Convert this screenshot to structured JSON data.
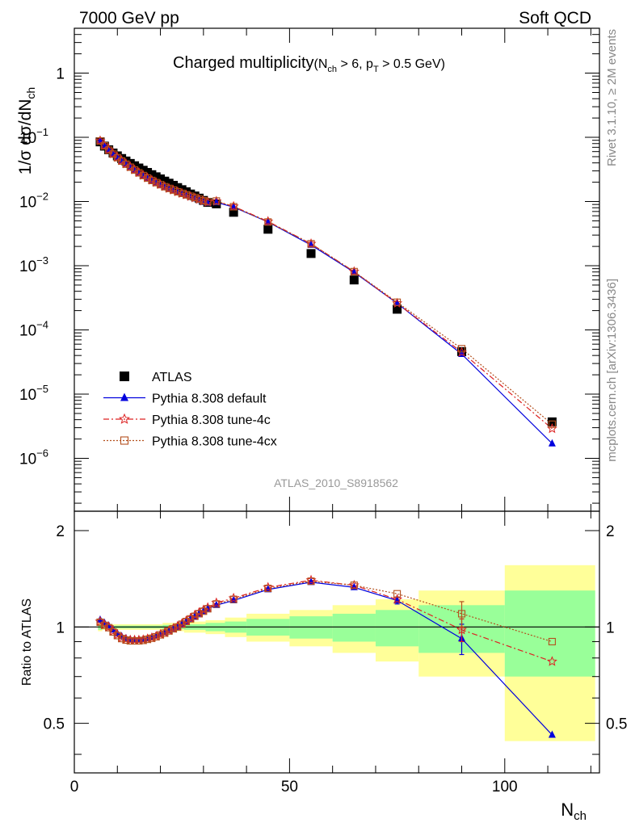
{
  "header": {
    "left": "7000 GeV pp",
    "right": "Soft QCD",
    "side_top": "Rivet 3.1.10, ≥ 2M events",
    "side_bottom": "mcplots.cern.ch [arXiv:1306.3436]",
    "watermark": "ATLAS_2010_S8918562"
  },
  "chart_data": [
    {
      "type": "scatter",
      "panel": "main",
      "title_main": "Charged multiplicity",
      "title_sub": "(N",
      "title_sub_ch": "ch",
      "title_sub_mid": " > 6, p",
      "title_sub_T": "T",
      "title_sub_end": " > 0.5 GeV)",
      "ylabel": "1/σ dσ/dN",
      "ylabel_sub": "ch",
      "yscale": "log",
      "xlim": [
        0,
        122
      ],
      "ylim": [
        1.5e-07,
        5
      ],
      "y_ticks": [
        {
          "value": 1e-06,
          "base": "10",
          "exp": "−6"
        },
        {
          "value": 1e-05,
          "base": "10",
          "exp": "−5"
        },
        {
          "value": 0.0001,
          "base": "10",
          "exp": "−4"
        },
        {
          "value": 0.001,
          "base": "10",
          "exp": "−3"
        },
        {
          "value": 0.01,
          "base": "10",
          "exp": "−2"
        },
        {
          "value": 0.1,
          "base": "10",
          "exp": "−1"
        },
        {
          "value": 1,
          "base": "1",
          "exp": ""
        }
      ],
      "legend_position": "lower-left",
      "x": [
        6,
        7,
        8,
        9,
        10,
        11,
        12,
        13,
        14,
        15,
        16,
        17,
        18,
        19,
        20,
        21,
        22,
        23,
        24,
        25,
        26,
        27,
        28,
        29,
        30,
        31,
        33,
        37,
        45,
        55,
        65,
        75,
        90,
        111
      ],
      "series": [
        {
          "name": "ATLAS",
          "color": "#000000",
          "marker": "square",
          "values": [
            0.085,
            0.073,
            0.064,
            0.057,
            0.0515,
            0.0468,
            0.0428,
            0.0392,
            0.0361,
            0.0333,
            0.0307,
            0.0284,
            0.0262,
            0.0243,
            0.0225,
            0.0208,
            0.0193,
            0.0179,
            0.0165,
            0.0153,
            0.0142,
            0.0131,
            0.0122,
            0.0113,
            0.0104,
            0.0097,
            0.0092,
            0.0068,
            0.0037,
            0.00155,
            0.0006,
            0.00021,
            4.6e-05,
            3.7e-06
          ]
        },
        {
          "name": "Pythia 8.308 default",
          "color": "#0000dd",
          "marker": "triangle",
          "values": [
            0.0895,
            0.0752,
            0.0646,
            0.0559,
            0.0491,
            0.0434,
            0.0387,
            0.0346,
            0.0311,
            0.0281,
            0.0254,
            0.0232,
            0.0213,
            0.0196,
            0.0182,
            0.0169,
            0.0158,
            0.0148,
            0.0139,
            0.0131,
            0.0124,
            0.0117,
            0.0111,
            0.0105,
            0.0099,
            0.0095,
            0.0097,
            0.0082,
            0.0048,
            0.0021,
            0.00079,
            0.00026,
            4.2e-05,
            1.7e-06
          ]
        },
        {
          "name": "Pythia 8.308 tune-4c",
          "color": "#dd2222",
          "marker": "star",
          "values": [
            0.0885,
            0.0743,
            0.0637,
            0.0553,
            0.0487,
            0.0432,
            0.0386,
            0.0347,
            0.0312,
            0.0282,
            0.0256,
            0.0234,
            0.0215,
            0.0198,
            0.0184,
            0.0171,
            0.016,
            0.0151,
            0.0142,
            0.0134,
            0.0127,
            0.012,
            0.0114,
            0.0108,
            0.0102,
            0.0098,
            0.0101,
            0.0084,
            0.0049,
            0.0022,
            0.00081,
            0.00026,
            4.5e-05,
            2.9e-06
          ]
        },
        {
          "name": "Pythia 8.308 tune-4cx",
          "color": "#b4501e",
          "marker": "opensquare",
          "values": [
            0.088,
            0.0738,
            0.0632,
            0.0548,
            0.0482,
            0.0427,
            0.0382,
            0.0343,
            0.0309,
            0.028,
            0.0254,
            0.0232,
            0.0213,
            0.0197,
            0.0183,
            0.017,
            0.016,
            0.0151,
            0.0142,
            0.0134,
            0.0127,
            0.0121,
            0.0115,
            0.0109,
            0.0103,
            0.0099,
            0.0102,
            0.0083,
            0.0048,
            0.0022,
            0.00081,
            0.00027,
            5.1e-05,
            3.4e-06
          ]
        }
      ]
    },
    {
      "type": "scatter",
      "panel": "ratio",
      "ylabel": "Ratio to ATLAS",
      "xlabel": "N",
      "xlabel_sub": "ch",
      "xlim": [
        0,
        122
      ],
      "ylim": [
        0.35,
        2.3
      ],
      "x_ticks": [
        "0",
        "50",
        "100"
      ],
      "y_ticks": [
        "0.5",
        "1",
        "2"
      ],
      "reference_line": 1,
      "bands": [
        {
          "x0": 5.5,
          "x1": 6.5,
          "inner": 0.02,
          "outer": 0.03
        },
        {
          "x0": 6.5,
          "x1": 20.5,
          "inner": 0.01,
          "outer": 0.02
        },
        {
          "x0": 20.5,
          "x1": 25.5,
          "inner": 0.015,
          "outer": 0.03
        },
        {
          "x0": 25.5,
          "x1": 30.5,
          "inner": 0.02,
          "outer": 0.04
        },
        {
          "x0": 30.5,
          "x1": 35,
          "inner": 0.03,
          "outer": 0.05
        },
        {
          "x0": 35,
          "x1": 40,
          "inner": 0.04,
          "outer": 0.07
        },
        {
          "x0": 40,
          "x1": 50,
          "inner": 0.06,
          "outer": 0.1
        },
        {
          "x0": 50,
          "x1": 60,
          "inner": 0.08,
          "outer": 0.13
        },
        {
          "x0": 60,
          "x1": 70,
          "inner": 0.1,
          "outer": 0.17
        },
        {
          "x0": 70,
          "x1": 80,
          "inner": 0.13,
          "outer": 0.22
        },
        {
          "x0": 80,
          "x1": 100,
          "inner": 0.17,
          "outer": 0.3
        },
        {
          "x0": 100,
          "x1": 121,
          "inner": 0.3,
          "outer": 0.56
        }
      ],
      "series": [
        {
          "name": "Pythia 8.308 default",
          "values": [
            1.053,
            1.03,
            1.01,
            0.98,
            0.955,
            0.935,
            0.922,
            0.915,
            0.912,
            0.912,
            0.915,
            0.92,
            0.93,
            0.94,
            0.95,
            0.962,
            0.975,
            0.988,
            1.0,
            1.02,
            1.04,
            1.06,
            1.08,
            1.1,
            1.12,
            1.14,
            1.17,
            1.21,
            1.31,
            1.38,
            1.33,
            1.21,
            0.92,
            0.46
          ],
          "err": {
            "31": 0.03,
            "32": 0.1
          }
        },
        {
          "name": "Pythia 8.308 tune-4c",
          "values": [
            1.04,
            1.017,
            1.0,
            0.97,
            0.945,
            0.925,
            0.915,
            0.91,
            0.91,
            0.91,
            0.912,
            0.918,
            0.925,
            0.935,
            0.948,
            0.96,
            0.975,
            0.99,
            1.005,
            1.025,
            1.045,
            1.065,
            1.09,
            1.11,
            1.13,
            1.15,
            1.19,
            1.23,
            1.33,
            1.4,
            1.35,
            1.22,
            0.98,
            0.78
          ],
          "err": {
            "32": 0.08
          }
        },
        {
          "name": "Pythia 8.308 tune-4cx",
          "values": [
            1.035,
            1.012,
            0.995,
            0.965,
            0.94,
            0.92,
            0.91,
            0.905,
            0.905,
            0.905,
            0.908,
            0.915,
            0.922,
            0.932,
            0.945,
            0.957,
            0.972,
            0.987,
            1.0,
            1.02,
            1.04,
            1.06,
            1.08,
            1.1,
            1.12,
            1.14,
            1.18,
            1.22,
            1.32,
            1.39,
            1.35,
            1.27,
            1.1,
            0.9
          ],
          "err": {
            "32": 0.1
          }
        }
      ]
    }
  ]
}
